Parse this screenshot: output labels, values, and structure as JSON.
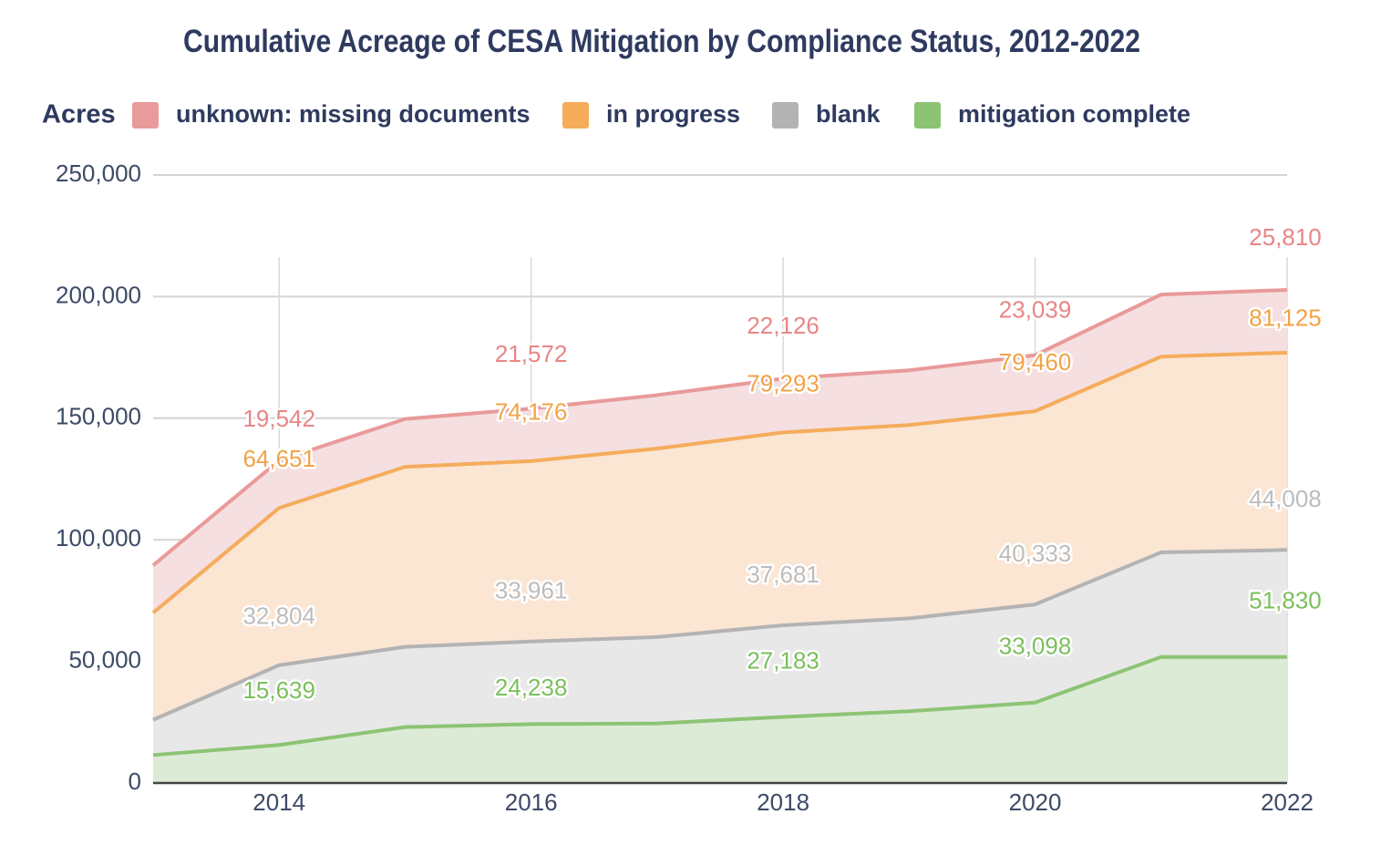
{
  "chart_data": {
    "type": "area",
    "stacked": true,
    "title": "Cumulative Acreage of CESA Mitigation by Compliance Status, 2012-2022",
    "ylabel": "Acres",
    "xlabel": "",
    "x": [
      2013,
      2014,
      2015,
      2016,
      2017,
      2018,
      2019,
      2020,
      2021,
      2022
    ],
    "x_ticks": [
      "2014",
      "2016",
      "2018",
      "2020",
      "2022"
    ],
    "x_tick_values": [
      2014,
      2016,
      2018,
      2020,
      2022
    ],
    "xlim": [
      2013,
      2022
    ],
    "ylim": [
      0,
      250000
    ],
    "y_ticks": [
      {
        "value": 0,
        "label": "0"
      },
      {
        "value": 50000,
        "label": "50,000"
      },
      {
        "value": 100000,
        "label": "100,000"
      },
      {
        "value": 150000,
        "label": "150,000"
      },
      {
        "value": 200000,
        "label": "200,000"
      },
      {
        "value": 250000,
        "label": "250,000"
      }
    ],
    "grid": true,
    "legend_position": "top",
    "series": [
      {
        "name": "mitigation complete",
        "color": "#8cc474",
        "fill": "#dcebd6",
        "label_color": "#7bbf5c",
        "values": [
          11500,
          15639,
          23000,
          24238,
          24500,
          27183,
          29500,
          33098,
          51830,
          51830
        ],
        "labels": [
          {
            "x": 2014,
            "text": "15,639"
          },
          {
            "x": 2016,
            "text": "24,238"
          },
          {
            "x": 2018,
            "text": "27,183"
          },
          {
            "x": 2020,
            "text": "33,098"
          },
          {
            "x": 2022,
            "text": "51,830"
          }
        ]
      },
      {
        "name": "blank",
        "color": "#b3b3b3",
        "fill": "#e8e8e8",
        "label_color": "#bdbdbd",
        "values": [
          14500,
          32804,
          33000,
          33961,
          35500,
          37681,
          38200,
          40333,
          43000,
          44008
        ],
        "labels": [
          {
            "x": 2014,
            "text": "32,804"
          },
          {
            "x": 2016,
            "text": "33,961"
          },
          {
            "x": 2018,
            "text": "37,681"
          },
          {
            "x": 2020,
            "text": "40,333"
          },
          {
            "x": 2022,
            "text": "44,008"
          }
        ]
      },
      {
        "name": "in progress",
        "color": "#f5ac5b",
        "fill": "#fbe5d3",
        "label_color": "#f0a347",
        "values": [
          44000,
          64651,
          74000,
          74176,
          77500,
          79293,
          79500,
          79460,
          80500,
          81125
        ],
        "labels": [
          {
            "x": 2014,
            "text": "64,651"
          },
          {
            "x": 2016,
            "text": "74,176"
          },
          {
            "x": 2018,
            "text": "79,293"
          },
          {
            "x": 2020,
            "text": "79,460"
          },
          {
            "x": 2022,
            "text": "81,125"
          }
        ]
      },
      {
        "name": "unknown: missing documents",
        "color": "#e99a9a",
        "fill": "#f5dfe0",
        "label_color": "#e88686",
        "values": [
          19500,
          19542,
          19700,
          21572,
          22000,
          22126,
          22500,
          23039,
          25500,
          25810
        ],
        "labels": [
          {
            "x": 2014,
            "text": "19,542"
          },
          {
            "x": 2016,
            "text": "21,572"
          },
          {
            "x": 2018,
            "text": "22,126"
          },
          {
            "x": 2020,
            "text": "23,039"
          },
          {
            "x": 2022,
            "text": "25,810"
          }
        ]
      }
    ],
    "legend_order": [
      "unknown: missing documents",
      "in progress",
      "blank",
      "mitigation complete"
    ],
    "colors": {
      "title": "#2e3a5f",
      "axis_text": "#3d4a66",
      "grid": "#d4d4d4",
      "baseline": "#444444"
    }
  }
}
